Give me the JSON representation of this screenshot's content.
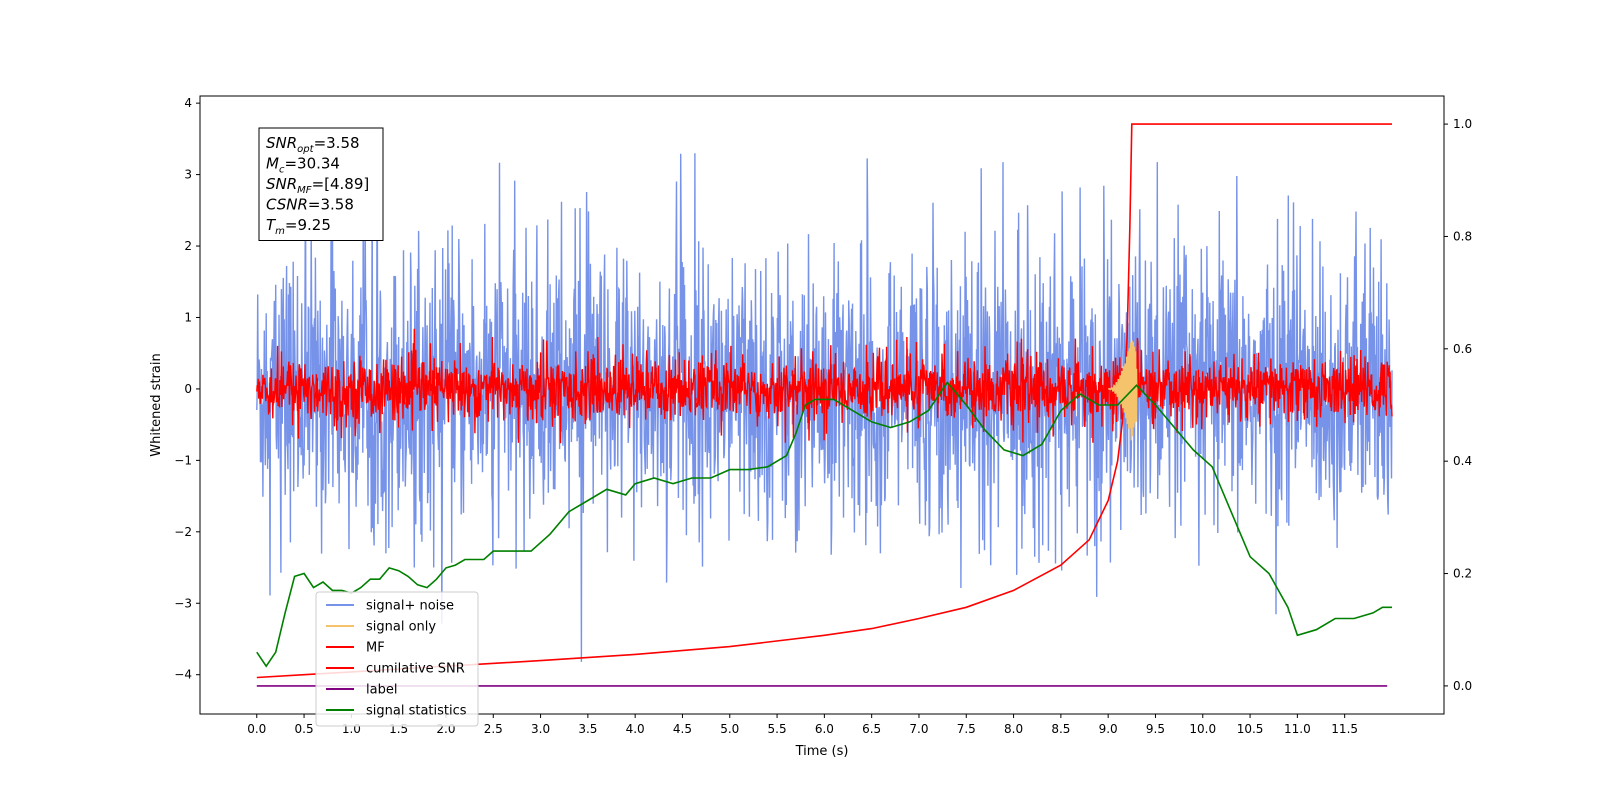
{
  "chart_data": {
    "type": "line",
    "title": "",
    "xlabel": "Time (s)",
    "ylabel": "Whitened strain",
    "xlim": [
      -0.6,
      12.55
    ],
    "ylim": [
      -4.55,
      4.1
    ],
    "y2lim": [
      -0.05,
      1.05
    ],
    "xticks": [
      "0.0",
      "0.5",
      "1.0",
      "1.5",
      "2.0",
      "2.5",
      "3.0",
      "3.5",
      "4.0",
      "4.5",
      "5.0",
      "5.5",
      "6.0",
      "6.5",
      "7.0",
      "7.5",
      "8.0",
      "8.5",
      "9.0",
      "9.5",
      "10.0",
      "10.5",
      "11.0",
      "11.5"
    ],
    "yticks": [
      "4",
      "3",
      "2",
      "1",
      "0",
      "−1",
      "−2",
      "−3",
      "−4"
    ],
    "y2ticks": [
      "1.0",
      "0.8",
      "0.6",
      "0.4",
      "0.2",
      "0.0"
    ],
    "grid": false,
    "legend_position": "lower-left",
    "annotation": {
      "lines": [
        {
          "sym": "SNR",
          "sub": "opt",
          "value": "=3.58"
        },
        {
          "sym": "M",
          "sub": "c",
          "value": "=30.34"
        },
        {
          "sym": "SNR",
          "sub": "MF",
          "value": "=[4.89]"
        },
        {
          "sym": "CSNR",
          "sub": "",
          "value": "=3.58"
        },
        {
          "sym": "T",
          "sub": "m",
          "value": "=9.25"
        }
      ]
    },
    "series": [
      {
        "name": "signal+ noise",
        "axis": "left",
        "color": "#4169e1",
        "style": "noise",
        "x_range": [
          0,
          12
        ],
        "amplitude": 0.95,
        "spike_max": 3.7,
        "spike_min": -4.15
      },
      {
        "name": "signal only",
        "axis": "left",
        "color": "#f5c36b",
        "style": "chirp",
        "merger_time": 9.25,
        "peak": 0.75
      },
      {
        "name": "MF",
        "axis": "left",
        "color": "#ff0000",
        "style": "noise",
        "x_range": [
          0,
          12
        ],
        "amplitude": 0.22,
        "spike_max": 1.0
      },
      {
        "name": "cumilative SNR",
        "axis": "right",
        "color": "#ff0000",
        "style": "line",
        "x": [
          0,
          0.5,
          1,
          2,
          3,
          4,
          5,
          6,
          6.5,
          7,
          7.5,
          8,
          8.5,
          8.8,
          9.0,
          9.1,
          9.15,
          9.2,
          9.23,
          9.25,
          9.3,
          10,
          11,
          12
        ],
        "y": [
          0.015,
          0.02,
          0.025,
          0.035,
          0.045,
          0.056,
          0.07,
          0.09,
          0.102,
          0.12,
          0.14,
          0.17,
          0.215,
          0.26,
          0.33,
          0.4,
          0.47,
          0.62,
          0.82,
          1.0,
          1.0,
          1.0,
          1.0,
          1.0
        ]
      },
      {
        "name": "label",
        "axis": "right",
        "color": "#800080",
        "style": "line",
        "x": [
          0,
          11.95
        ],
        "y": [
          0.0,
          0.0
        ]
      },
      {
        "name": "signal statistics",
        "axis": "right",
        "color": "#008000",
        "style": "line",
        "x": [
          0,
          0.1,
          0.2,
          0.3,
          0.4,
          0.5,
          0.6,
          0.7,
          0.8,
          0.9,
          1.0,
          1.1,
          1.2,
          1.3,
          1.4,
          1.5,
          1.6,
          1.7,
          1.8,
          1.9,
          2.0,
          2.1,
          2.2,
          2.4,
          2.5,
          2.7,
          2.9,
          3.1,
          3.3,
          3.5,
          3.7,
          3.9,
          4.0,
          4.2,
          4.4,
          4.6,
          4.8,
          5.0,
          5.2,
          5.4,
          5.6,
          5.7,
          5.8,
          5.9,
          6.1,
          6.3,
          6.5,
          6.7,
          6.9,
          7.1,
          7.3,
          7.5,
          7.7,
          7.9,
          8.1,
          8.3,
          8.5,
          8.7,
          8.9,
          9.1,
          9.3,
          9.5,
          9.7,
          9.9,
          10.1,
          10.3,
          10.5,
          10.7,
          10.9,
          11.0,
          11.2,
          11.4,
          11.6,
          11.8,
          11.9,
          12.0
        ],
        "y": [
          0.06,
          0.035,
          0.06,
          0.13,
          0.195,
          0.2,
          0.175,
          0.185,
          0.17,
          0.17,
          0.165,
          0.175,
          0.19,
          0.19,
          0.21,
          0.205,
          0.195,
          0.18,
          0.175,
          0.19,
          0.21,
          0.215,
          0.225,
          0.225,
          0.24,
          0.24,
          0.24,
          0.27,
          0.31,
          0.33,
          0.35,
          0.34,
          0.36,
          0.37,
          0.36,
          0.37,
          0.37,
          0.385,
          0.385,
          0.39,
          0.41,
          0.45,
          0.5,
          0.51,
          0.51,
          0.49,
          0.47,
          0.46,
          0.47,
          0.49,
          0.54,
          0.5,
          0.455,
          0.42,
          0.41,
          0.43,
          0.49,
          0.52,
          0.5,
          0.5,
          0.535,
          0.5,
          0.46,
          0.42,
          0.39,
          0.31,
          0.23,
          0.2,
          0.14,
          0.09,
          0.1,
          0.12,
          0.12,
          0.13,
          0.14,
          0.14
        ]
      }
    ]
  }
}
